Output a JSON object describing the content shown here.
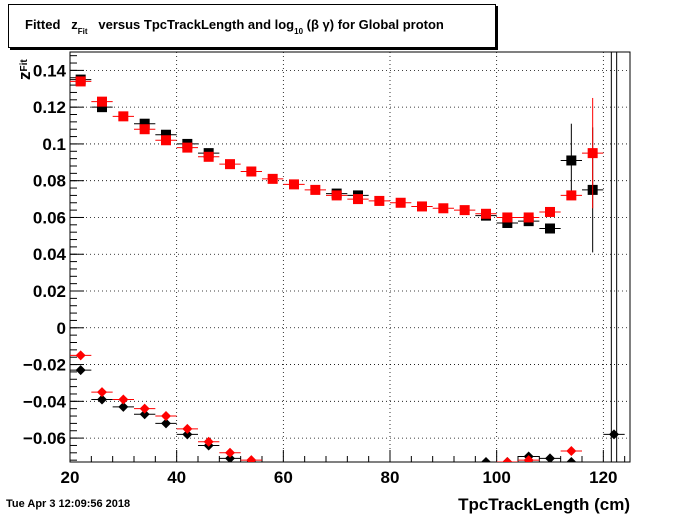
{
  "title": {
    "prefix": "Fitted",
    "z": "z",
    "z_sub": "Fit",
    "middle": "versus TpcTrackLength and log",
    "log_sub": "10",
    "suffix": "(β γ) for Global proton"
  },
  "timestamp": "Tue Apr  3 12:09:56 2018",
  "chart_data": {
    "type": "scatter",
    "title": "Fitted z_Fit versus TpcTrackLength and log10 (β γ) for Global proton",
    "xlabel": "TpcTrackLength (cm)",
    "ylabel": "z_Fit",
    "xlim": [
      20,
      125
    ],
    "ylim": [
      -0.073,
      0.15
    ],
    "grid": true,
    "x_ticks": [
      20,
      40,
      60,
      80,
      100,
      120
    ],
    "x_tick_labels": [
      "20",
      "40",
      "60",
      "80",
      "100",
      "120"
    ],
    "y_ticks": [
      -0.06,
      -0.04,
      -0.02,
      0,
      0.02,
      0.04,
      0.06,
      0.08,
      0.1,
      0.12,
      0.14
    ],
    "y_tick_labels": [
      "−0.06",
      "−0.04",
      "−0.02",
      "0",
      "0.02",
      "0.04",
      "0.06",
      "0.08",
      "0.1",
      "0.12",
      "0.14"
    ],
    "series": [
      {
        "marker": "square",
        "color": "#000000",
        "points": [
          {
            "x": 22,
            "y": 0.135
          },
          {
            "x": 26,
            "y": 0.12
          },
          {
            "x": 34,
            "y": 0.111
          },
          {
            "x": 38,
            "y": 0.105
          },
          {
            "x": 42,
            "y": 0.1
          },
          {
            "x": 46,
            "y": 0.095
          },
          {
            "x": 70,
            "y": 0.073
          },
          {
            "x": 74,
            "y": 0.072
          },
          {
            "x": 98,
            "y": 0.061
          },
          {
            "x": 102,
            "y": 0.057
          },
          {
            "x": 106,
            "y": 0.058
          },
          {
            "x": 110,
            "y": 0.054
          },
          {
            "x": 114,
            "y": 0.091,
            "err": 0.02
          },
          {
            "x": 118,
            "y": 0.075,
            "err": 0.034
          }
        ]
      },
      {
        "marker": "square",
        "color": "#ff0000",
        "points": [
          {
            "x": 22,
            "y": 0.134
          },
          {
            "x": 26,
            "y": 0.123
          },
          {
            "x": 30,
            "y": 0.115
          },
          {
            "x": 34,
            "y": 0.108
          },
          {
            "x": 38,
            "y": 0.102
          },
          {
            "x": 42,
            "y": 0.098
          },
          {
            "x": 46,
            "y": 0.093
          },
          {
            "x": 50,
            "y": 0.089
          },
          {
            "x": 54,
            "y": 0.085
          },
          {
            "x": 58,
            "y": 0.081
          },
          {
            "x": 62,
            "y": 0.078
          },
          {
            "x": 66,
            "y": 0.075
          },
          {
            "x": 70,
            "y": 0.072
          },
          {
            "x": 74,
            "y": 0.07
          },
          {
            "x": 78,
            "y": 0.069
          },
          {
            "x": 82,
            "y": 0.068
          },
          {
            "x": 86,
            "y": 0.066
          },
          {
            "x": 90,
            "y": 0.065
          },
          {
            "x": 94,
            "y": 0.064
          },
          {
            "x": 98,
            "y": 0.062
          },
          {
            "x": 102,
            "y": 0.06
          },
          {
            "x": 106,
            "y": 0.06
          },
          {
            "x": 110,
            "y": 0.063
          },
          {
            "x": 114,
            "y": 0.072
          },
          {
            "x": 118,
            "y": 0.095,
            "err": 0.03
          }
        ]
      },
      {
        "marker": "diamond",
        "color": "#000000",
        "points": [
          {
            "x": 22,
            "y": -0.023
          },
          {
            "x": 26,
            "y": -0.039
          },
          {
            "x": 30,
            "y": -0.043
          },
          {
            "x": 34,
            "y": -0.047
          },
          {
            "x": 38,
            "y": -0.052
          },
          {
            "x": 42,
            "y": -0.058
          },
          {
            "x": 46,
            "y": -0.064
          },
          {
            "x": 50,
            "y": -0.071
          },
          {
            "x": 54,
            "y": -0.073
          },
          {
            "x": 98,
            "y": -0.073
          },
          {
            "x": 102,
            "y": -0.073
          },
          {
            "x": 106,
            "y": -0.07
          },
          {
            "x": 110,
            "y": -0.071
          },
          {
            "x": 114,
            "y": -0.073
          },
          {
            "x": 122,
            "y": -0.058
          }
        ]
      },
      {
        "marker": "diamond",
        "color": "#ff0000",
        "points": [
          {
            "x": 22,
            "y": -0.015
          },
          {
            "x": 26,
            "y": -0.035
          },
          {
            "x": 30,
            "y": -0.039
          },
          {
            "x": 34,
            "y": -0.044
          },
          {
            "x": 38,
            "y": -0.048
          },
          {
            "x": 42,
            "y": -0.055
          },
          {
            "x": 46,
            "y": -0.062
          },
          {
            "x": 50,
            "y": -0.068
          },
          {
            "x": 54,
            "y": -0.072
          },
          {
            "x": 102,
            "y": -0.073
          },
          {
            "x": 106,
            "y": -0.072
          },
          {
            "x": 114,
            "y": -0.067
          }
        ]
      }
    ]
  }
}
